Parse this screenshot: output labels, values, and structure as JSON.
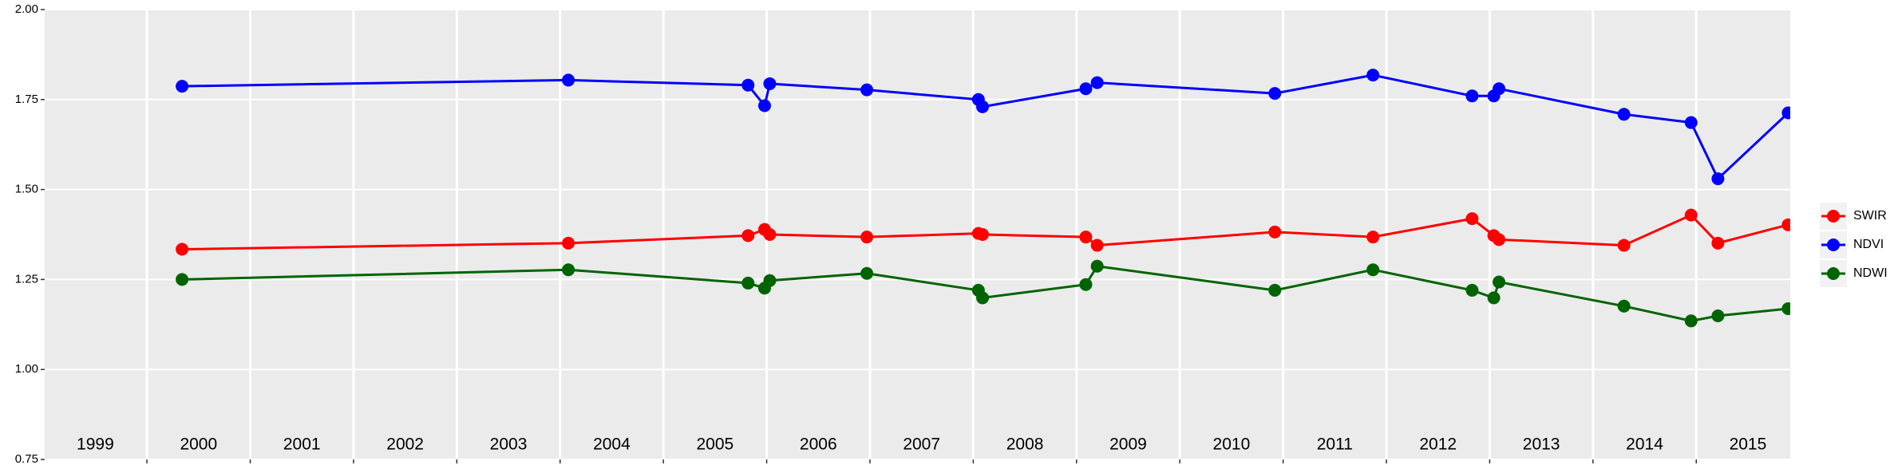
{
  "chart_data": {
    "type": "line",
    "x": [
      2000.34,
      2004.08,
      2005.82,
      2005.98,
      2006.03,
      2006.97,
      2008.05,
      2008.09,
      2009.09,
      2009.2,
      2010.92,
      2011.87,
      2012.83,
      2013.04,
      2013.09,
      2014.3,
      2014.95,
      2015.21,
      2015.89
    ],
    "series": [
      {
        "name": "SWIR",
        "color": "#ff0000",
        "values": [
          1.334,
          1.351,
          1.372,
          1.389,
          1.375,
          1.368,
          1.378,
          1.375,
          1.368,
          1.345,
          1.382,
          1.368,
          1.419,
          1.372,
          1.361,
          1.345,
          1.429,
          1.351,
          1.402
        ]
      },
      {
        "name": "NDVI",
        "color": "#0000ff",
        "values": [
          1.787,
          1.804,
          1.79,
          1.733,
          1.794,
          1.777,
          1.75,
          1.73,
          1.78,
          1.797,
          1.767,
          1.818,
          1.76,
          1.76,
          1.78,
          1.709,
          1.686,
          1.53,
          1.713
        ]
      },
      {
        "name": "NDWI",
        "color": "#006400",
        "values": [
          1.25,
          1.277,
          1.24,
          1.226,
          1.247,
          1.267,
          1.22,
          1.199,
          1.236,
          1.287,
          1.22,
          1.277,
          1.22,
          1.199,
          1.243,
          1.176,
          1.135,
          1.149,
          1.169
        ]
      }
    ],
    "xlim": [
      1999.01,
      2015.91
    ],
    "xticks": [
      2000,
      2001,
      2002,
      2003,
      2004,
      2005,
      2006,
      2007,
      2008,
      2009,
      2010,
      2011,
      2012,
      2013,
      2014,
      2015
    ],
    "year_labels": [
      "1999",
      "2000",
      "2001",
      "2002",
      "2003",
      "2004",
      "2005",
      "2006",
      "2007",
      "2008",
      "2009",
      "2010",
      "2011",
      "2012",
      "2013",
      "2014",
      "2015"
    ],
    "ylim": [
      0.75,
      2.0
    ],
    "yticks": [
      0.75,
      {
        "value": 1.0,
        "label": "1.00"
      },
      1.25,
      {
        "value": 1.5,
        "label": "1.50"
      },
      1.75,
      {
        "value": 2.0,
        "label": "2.00"
      }
    ],
    "grid": true,
    "legend": "right"
  }
}
